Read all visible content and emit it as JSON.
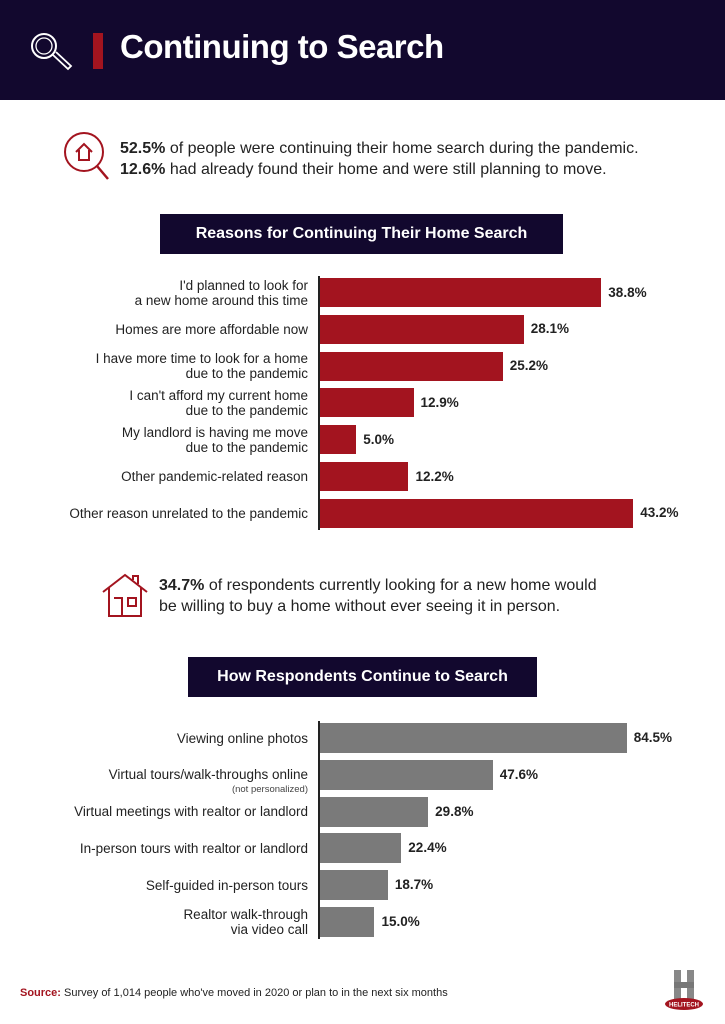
{
  "header": {
    "title": "Continuing to Search"
  },
  "stat1": {
    "pct1": "52.5%",
    "text1": " of people were continuing their home search during the pandemic.",
    "pct2": "12.6%",
    "text2": " had already found their home and were still planning to move."
  },
  "stat2": {
    "pct": "34.7%",
    "text1": " of respondents currently looking for a new home would",
    "text2": "be willing to buy a home without ever seeing it in person."
  },
  "colors": {
    "navy": "#12082e",
    "red": "#a3141f",
    "gray": "#7a7a7a"
  },
  "chart_data": [
    {
      "type": "bar",
      "orientation": "horizontal",
      "title": "Reasons for Continuing Their Home Search",
      "categories": [
        [
          "I'd planned to look for",
          "a new home around this time"
        ],
        [
          "Homes are more affordable now"
        ],
        [
          "I have more time to look for a home",
          "due to the pandemic"
        ],
        [
          "I can't afford my current home",
          "due to the pandemic"
        ],
        [
          "My landlord is having me move",
          "due to the pandemic"
        ],
        [
          "Other pandemic-related reason"
        ],
        [
          "Other reason unrelated to the pandemic"
        ]
      ],
      "values": [
        38.8,
        28.1,
        25.2,
        12.9,
        5.0,
        12.2,
        43.2
      ],
      "labels": [
        "38.8%",
        "28.1%",
        "25.2%",
        "12.9%",
        "5.0%",
        "12.2%",
        "43.2%"
      ],
      "unit": "%"
    },
    {
      "type": "bar",
      "orientation": "horizontal",
      "title": "How Respondents Continue to Search",
      "categories": [
        [
          "Viewing online photos"
        ],
        [
          "Virtual tours/walk-throughs online"
        ],
        [
          "Virtual meetings with realtor or landlord"
        ],
        [
          "In-person tours with realtor or landlord"
        ],
        [
          "Self-guided in-person tours"
        ],
        [
          "Realtor walk-through",
          "via video call"
        ]
      ],
      "notes": [
        "",
        "(not personalized)",
        "",
        "",
        "",
        ""
      ],
      "values": [
        84.5,
        47.6,
        29.8,
        22.4,
        18.7,
        15.0
      ],
      "labels": [
        "84.5%",
        "47.6%",
        "29.8%",
        "22.4%",
        "18.7%",
        "15.0%"
      ],
      "unit": "%"
    }
  ],
  "source": {
    "label": "Source:",
    "text": " Survey of 1,014 people who've moved in 2020 or plan to in the next six months"
  },
  "logo": {
    "text": "HELITECH"
  }
}
